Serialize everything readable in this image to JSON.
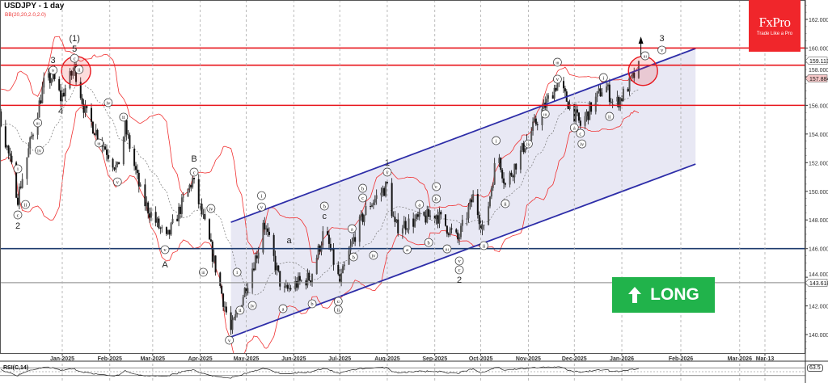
{
  "header": {
    "symbol_title": "USDJPY - 1 day",
    "indicator": "BB(20,20,2.0,2.0)"
  },
  "logo": {
    "brand": "FxPro",
    "tagline": "Trade Like a Pro"
  },
  "signal": {
    "label": "LONG",
    "icon": "arrow-up-icon",
    "color": "#21b34b"
  },
  "rsi": {
    "label": "RSI(C,14)",
    "value": "63.5"
  },
  "chart_data": {
    "type": "candlestick",
    "symbol": "USDJPY",
    "timeframe": "1 day",
    "ylim": [
      138.8,
      163.3
    ],
    "y_ticks": [
      "140.000",
      "142.000",
      "144.000",
      "146.000",
      "148.000",
      "150.000",
      "152.000",
      "154.000",
      "156.000",
      "158.000",
      "160.000",
      "162.000"
    ],
    "x_ticks": [
      {
        "label": "Jan-2025",
        "date": "2025-01-01"
      },
      {
        "label": "Feb-2025",
        "date": "2025-02-01"
      },
      {
        "label": "Mar-2025",
        "date": "2025-03-01"
      },
      {
        "label": "Apr-2025",
        "date": "2025-04-01"
      },
      {
        "label": "May-2025",
        "date": "2025-05-01"
      },
      {
        "label": "Jun-2025",
        "date": "2025-06-01"
      },
      {
        "label": "Jul-2025",
        "date": "2025-07-01"
      },
      {
        "label": "Aug-2025",
        "date": "2025-08-01"
      },
      {
        "label": "Sep-2025",
        "date": "2025-09-01"
      },
      {
        "label": "Oct-2025",
        "date": "2025-10-01"
      },
      {
        "label": "Nov-2025",
        "date": "2025-11-01"
      },
      {
        "label": "Dec-2025",
        "date": "2025-12-01"
      },
      {
        "label": "Jan-2026",
        "date": "2026-01-01"
      },
      {
        "label": "Feb-2026",
        "date": "2026-02-01"
      },
      {
        "label": "Mar-2026",
        "date": "2026-03-01"
      },
      {
        "label": "Mar-13",
        "date": "2026-03-13"
      }
    ],
    "price_tags": [
      {
        "value": "159.113",
        "style": "white"
      },
      {
        "value": "157.884",
        "style": "pink"
      },
      {
        "value": "143.618",
        "style": "white"
      }
    ],
    "horizontal_levels": [
      {
        "price": 160.0,
        "color": "#e8141b"
      },
      {
        "price": 158.8,
        "color": "#e8141b"
      },
      {
        "price": 156.0,
        "color": "#e8141b"
      },
      {
        "price": 146.0,
        "color": "#1d3b6e"
      },
      {
        "price": 143.618,
        "color": "#888888"
      }
    ],
    "channel": {
      "color": "#2d2da8",
      "fill": "#e4e4f2",
      "upper": [
        {
          "date": "2025-04-21",
          "price": 147.84
        },
        {
          "date": "2026-02-08",
          "price": 159.97
        }
      ],
      "lower": [
        {
          "date": "2025-04-21",
          "price": 139.83
        },
        {
          "date": "2026-02-08",
          "price": 151.9
        }
      ]
    },
    "highlight_circles": [
      {
        "date": "2025-01-10",
        "price": 158.4
      },
      {
        "date": "2026-01-14",
        "price": 158.4
      }
    ],
    "price_path": [
      {
        "date": "2024-10-15",
        "close": 149.5
      },
      {
        "date": "2024-11-14",
        "close": 156.3
      },
      {
        "date": "2024-11-22",
        "close": 155.0
      },
      {
        "date": "2024-12-03",
        "close": 149.6
      },
      {
        "date": "2024-12-20",
        "close": 157.5
      },
      {
        "date": "2024-12-26",
        "close": 158.0
      },
      {
        "date": "2024-12-31",
        "close": 156.5
      },
      {
        "date": "2025-01-09",
        "close": 158.6
      },
      {
        "date": "2025-01-16",
        "close": 155.5
      },
      {
        "date": "2025-02-06",
        "close": 151.5
      },
      {
        "date": "2025-02-11",
        "close": 154.5
      },
      {
        "date": "2025-02-22",
        "close": 149.5
      },
      {
        "date": "2025-03-10",
        "close": 146.6
      },
      {
        "date": "2025-03-27",
        "close": 150.8
      },
      {
        "date": "2025-04-08",
        "close": 146.0
      },
      {
        "date": "2025-04-21",
        "close": 140.2
      },
      {
        "date": "2025-05-09",
        "close": 146.0
      },
      {
        "date": "2025-05-12",
        "close": 148.0
      },
      {
        "date": "2025-05-25",
        "close": 142.9
      },
      {
        "date": "2025-06-02",
        "close": 143.5
      },
      {
        "date": "2025-06-12",
        "close": 144.0
      },
      {
        "date": "2025-06-21",
        "close": 147.3
      },
      {
        "date": "2025-07-01",
        "close": 143.6
      },
      {
        "date": "2025-07-11",
        "close": 147.0
      },
      {
        "date": "2025-07-19",
        "close": 148.9
      },
      {
        "date": "2025-08-01",
        "close": 150.4
      },
      {
        "date": "2025-08-06",
        "close": 147.5
      },
      {
        "date": "2025-09-02",
        "close": 148.4
      },
      {
        "date": "2025-09-16",
        "close": 146.6
      },
      {
        "date": "2025-09-26",
        "close": 149.6
      },
      {
        "date": "2025-10-03",
        "close": 147.2
      },
      {
        "date": "2025-10-12",
        "close": 152.9
      },
      {
        "date": "2025-10-17",
        "close": 150.4
      },
      {
        "date": "2025-11-02",
        "close": 154.0
      },
      {
        "date": "2025-11-20",
        "close": 157.6
      },
      {
        "date": "2025-12-02",
        "close": 155.2
      },
      {
        "date": "2025-12-05",
        "close": 154.6
      },
      {
        "date": "2025-12-21",
        "close": 157.5
      },
      {
        "date": "2025-12-27",
        "close": 156.0
      },
      {
        "date": "2026-01-01",
        "close": 156.6
      },
      {
        "date": "2026-01-12",
        "close": 158.6
      }
    ],
    "wave_labels": [
      {
        "t": "(1)",
        "date": "2025-01-09",
        "price": 160.7,
        "s": "plain"
      },
      {
        "t": "5",
        "date": "2025-01-09",
        "price": 159.97,
        "s": "plain"
      },
      {
        "t": "3",
        "date": "2024-12-26",
        "price": 159.18,
        "s": "plain"
      },
      {
        "t": "4",
        "date": "2024-12-31",
        "price": 155.63,
        "s": "plain"
      },
      {
        "t": "2",
        "date": "2024-12-03",
        "price": 147.62,
        "s": "plain"
      },
      {
        "t": "B",
        "date": "2025-03-28",
        "price": 152.3,
        "s": "plain"
      },
      {
        "t": "A",
        "date": "2025-03-09",
        "price": 144.91,
        "s": "plain"
      },
      {
        "t": "c",
        "date": "2025-01-09",
        "price": 159.29,
        "s": "circle"
      },
      {
        "t": "v",
        "date": "2024-12-26",
        "price": 158.45,
        "s": "circle"
      },
      {
        "t": "ii",
        "date": "2025-01-12",
        "price": 158.5,
        "s": "circle"
      },
      {
        "t": "i",
        "date": "2024-12-03",
        "price": 151.57,
        "s": "circle"
      },
      {
        "t": "ii",
        "date": "2024-12-08",
        "price": 149.08,
        "s": "circle"
      },
      {
        "t": "c",
        "date": "2024-12-03",
        "price": 148.35,
        "s": "circle"
      },
      {
        "t": "iii",
        "date": "2024-12-16",
        "price": 154.78,
        "s": "circle"
      },
      {
        "t": "iv",
        "date": "2024-12-17",
        "price": 152.86,
        "s": "circle"
      },
      {
        "t": "iv",
        "date": "2025-01-31",
        "price": 156.19,
        "s": "circle"
      },
      {
        "t": "iii",
        "date": "2025-01-25",
        "price": 153.37,
        "s": "circle"
      },
      {
        "t": "ii",
        "date": "2025-02-10",
        "price": 155.18,
        "s": "circle"
      },
      {
        "t": "v",
        "date": "2025-02-06",
        "price": 150.66,
        "s": "circle"
      },
      {
        "t": "c",
        "date": "2025-03-28",
        "price": 151.34,
        "s": "circle"
      },
      {
        "t": "v",
        "date": "2025-03-09",
        "price": 145.93,
        "s": "circle"
      },
      {
        "t": "iv",
        "date": "2025-04-08",
        "price": 148.8,
        "s": "circle"
      },
      {
        "t": "iii",
        "date": "2025-04-03",
        "price": 144.35,
        "s": "circle"
      },
      {
        "t": "v",
        "date": "2025-04-20",
        "price": 139.61,
        "s": "circle"
      },
      {
        "t": "i",
        "date": "2025-04-25",
        "price": 144.35,
        "s": "circle"
      },
      {
        "t": "ii",
        "date": "2025-04-27",
        "price": 141.7,
        "s": "circle"
      },
      {
        "t": "iv",
        "date": "2025-05-05",
        "price": 142.03,
        "s": "circle"
      },
      {
        "t": "i",
        "date": "2025-05-11",
        "price": 149.7,
        "s": "circle"
      },
      {
        "t": "v",
        "date": "2025-05-11",
        "price": 148.91,
        "s": "circle"
      },
      {
        "t": "a",
        "date": "2025-05-29",
        "price": 146.6,
        "s": "plain"
      },
      {
        "t": "a",
        "date": "2025-05-25",
        "price": 141.81,
        "s": "circle"
      },
      {
        "t": "b",
        "date": "2025-06-13",
        "price": 142.15,
        "s": "circle"
      },
      {
        "t": "b",
        "date": "2025-06-21",
        "price": 148.97,
        "s": "circle"
      },
      {
        "t": "c",
        "date": "2025-06-21",
        "price": 148.29,
        "s": "plain"
      },
      {
        "t": "c",
        "date": "2025-06-30",
        "price": 142.32,
        "s": "circle"
      },
      {
        "t": "ii",
        "date": "2025-06-30",
        "price": 141.75,
        "s": "circle"
      },
      {
        "t": "a",
        "date": "2025-07-09",
        "price": 147.39,
        "s": "circle"
      },
      {
        "t": "b",
        "date": "2025-07-10",
        "price": 145.42,
        "s": "circle"
      },
      {
        "t": "b",
        "date": "2025-07-16",
        "price": 150.21,
        "s": "circle"
      },
      {
        "t": "c",
        "date": "2025-07-16",
        "price": 149.54,
        "s": "circle"
      },
      {
        "t": "iv",
        "date": "2025-07-23",
        "price": 145.53,
        "s": "circle"
      },
      {
        "t": "1",
        "date": "2025-08-01",
        "price": 152.02,
        "s": "plain"
      },
      {
        "t": "v",
        "date": "2025-08-01",
        "price": 151.34,
        "s": "circle"
      },
      {
        "t": "a",
        "date": "2025-08-14",
        "price": 145.93,
        "s": "circle"
      },
      {
        "t": "a",
        "date": "2025-08-22",
        "price": 149.08,
        "s": "circle"
      },
      {
        "t": "b",
        "date": "2025-08-28",
        "price": 146.43,
        "s": "circle"
      },
      {
        "t": "b",
        "date": "2025-09-02",
        "price": 149.48,
        "s": "circle"
      },
      {
        "t": "c",
        "date": "2025-09-02",
        "price": 150.33,
        "s": "circle"
      },
      {
        "t": "iii",
        "date": "2025-09-09",
        "price": 145.98,
        "s": "circle"
      },
      {
        "t": "v",
        "date": "2025-09-17",
        "price": 145.14,
        "s": "circle"
      },
      {
        "t": "c",
        "date": "2025-09-17",
        "price": 144.52,
        "s": "circle"
      },
      {
        "t": "2",
        "date": "2025-09-17",
        "price": 143.84,
        "s": "plain"
      },
      {
        "t": "ii",
        "date": "2025-10-03",
        "price": 146.21,
        "s": "circle"
      },
      {
        "t": "i",
        "date": "2025-10-11",
        "price": 153.54,
        "s": "circle"
      },
      {
        "t": "ii",
        "date": "2025-10-17",
        "price": 149.14,
        "s": "circle"
      },
      {
        "t": "iv",
        "date": "2025-11-01",
        "price": 153.31,
        "s": "circle"
      },
      {
        "t": "iii",
        "date": "2025-11-12",
        "price": 155.4,
        "s": "circle"
      },
      {
        "t": "iii",
        "date": "2025-11-20",
        "price": 159.01,
        "s": "circle"
      },
      {
        "t": "v",
        "date": "2025-11-20",
        "price": 157.83,
        "s": "circle"
      },
      {
        "t": "a",
        "date": "2025-12-01",
        "price": 154.44,
        "s": "circle"
      },
      {
        "t": "c",
        "date": "2025-12-05",
        "price": 154.05,
        "s": "circle"
      },
      {
        "t": "iv",
        "date": "2025-12-06",
        "price": 153.31,
        "s": "circle"
      },
      {
        "t": "i",
        "date": "2025-12-20",
        "price": 157.94,
        "s": "circle"
      },
      {
        "t": "ii",
        "date": "2025-12-24",
        "price": 155.23,
        "s": "circle"
      },
      {
        "t": "iii",
        "date": "2026-01-15",
        "price": 159.46,
        "s": "circle"
      },
      {
        "t": "3",
        "date": "2026-01-23",
        "price": 160.7,
        "s": "plain"
      },
      {
        "t": "v",
        "date": "2026-01-23",
        "price": 159.86,
        "s": "circle"
      }
    ]
  }
}
